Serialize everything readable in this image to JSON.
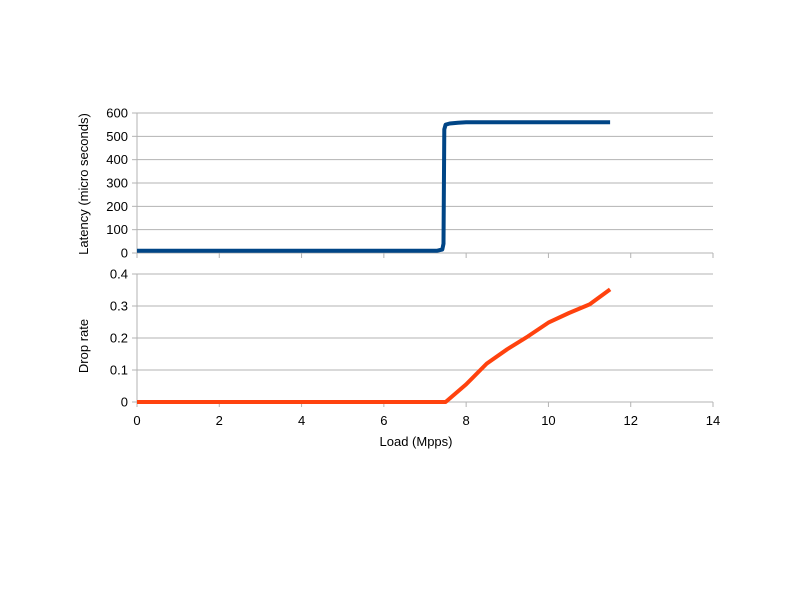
{
  "chart_data": [
    {
      "type": "line",
      "title": "",
      "xlabel": "",
      "ylabel": "Latency (micro seconds)",
      "xlim": [
        0,
        14
      ],
      "ylim": [
        0,
        600
      ],
      "yticks": [
        "0",
        "100",
        "200",
        "300",
        "400",
        "500",
        "600"
      ],
      "grid": true,
      "legend": "none",
      "series": [
        {
          "color": "#004586",
          "points": [
            [
              0,
              10
            ],
            [
              7.3,
              10
            ],
            [
              7.42,
              15
            ],
            [
              7.45,
              40
            ],
            [
              7.47,
              530
            ],
            [
              7.5,
              550
            ],
            [
              7.6,
              555
            ],
            [
              7.8,
              558
            ],
            [
              8,
              560
            ],
            [
              11.5,
              560
            ]
          ]
        }
      ]
    },
    {
      "type": "line",
      "title": "",
      "xlabel": "Load (Mpps)",
      "ylabel": "Drop rate",
      "xlim": [
        0,
        14
      ],
      "ylim": [
        0,
        0.4
      ],
      "xticks": [
        "0",
        "2",
        "4",
        "6",
        "8",
        "10",
        "12",
        "14"
      ],
      "yticks": [
        "0",
        "0.1",
        "0.2",
        "0.3",
        "0.4"
      ],
      "grid": true,
      "legend": "none",
      "series": [
        {
          "color": "#ff420e",
          "points": [
            [
              0,
              0
            ],
            [
              7.5,
              0
            ],
            [
              8,
              0.055
            ],
            [
              8.5,
              0.12
            ],
            [
              9,
              0.165
            ],
            [
              9.5,
              0.205
            ],
            [
              10,
              0.248
            ],
            [
              10.5,
              0.278
            ],
            [
              11,
              0.305
            ],
            [
              11.5,
              0.352
            ]
          ]
        }
      ]
    }
  ]
}
